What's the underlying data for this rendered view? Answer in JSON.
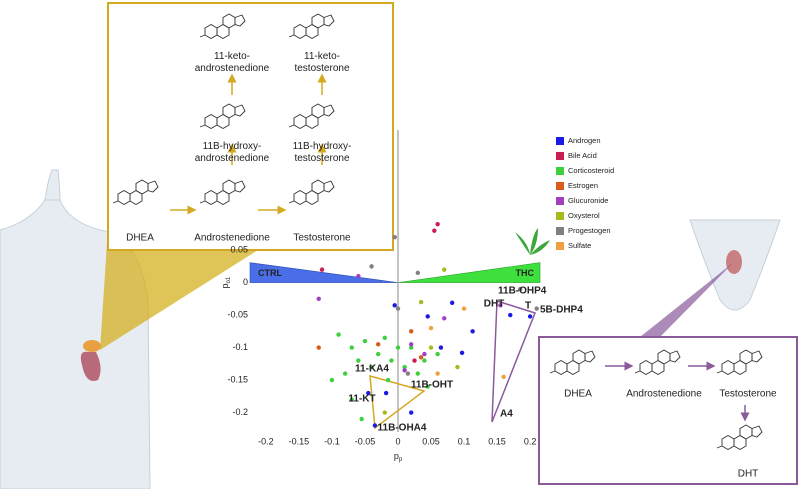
{
  "chart_data": {
    "type": "scatter",
    "xlabel": {
      "main": "p",
      "sub": "p"
    },
    "ylabel": {
      "main": "p",
      "sub": "o1"
    },
    "xlim": [
      -0.215,
      0.215
    ],
    "ylim": [
      -0.23,
      0.235
    ],
    "xticks": [
      -0.2,
      -0.15,
      -0.1,
      -0.05,
      0,
      0.05,
      0.1,
      0.15,
      0.2
    ],
    "yticks": [
      0.05,
      0,
      -0.05,
      -0.1,
      -0.15,
      -0.2
    ],
    "grid": false,
    "legend": "upper right",
    "series": [
      {
        "name": "Androgen",
        "color": "#1a1ae6",
        "x": [
          0.045,
          0.082,
          0.097,
          0.113,
          -0.005,
          -0.045,
          -0.018,
          -0.035,
          0.2,
          0.17,
          0.065,
          0.02
        ],
        "y": [
          -0.052,
          -0.031,
          -0.108,
          -0.075,
          -0.035,
          -0.17,
          -0.17,
          -0.22,
          -0.052,
          -0.05,
          -0.1,
          -0.2
        ]
      },
      {
        "name": "Bile Acid",
        "color": "#c81e50",
        "x": [
          0.055,
          0.06,
          -0.115,
          0.025
        ],
        "y": [
          0.08,
          0.09,
          0.02,
          -0.12
        ]
      },
      {
        "name": "Corticosteroid",
        "color": "#3ecf3e",
        "x": [
          -0.09,
          -0.07,
          -0.06,
          -0.05,
          -0.04,
          -0.03,
          -0.02,
          -0.01,
          0.01,
          0.02,
          0.03,
          0.04,
          -0.08,
          -0.07,
          -0.055,
          -0.1,
          0.045,
          0.06,
          -0.015,
          0.0
        ],
        "y": [
          -0.08,
          -0.1,
          -0.12,
          -0.09,
          -0.13,
          -0.11,
          -0.085,
          -0.12,
          -0.13,
          -0.1,
          -0.14,
          -0.12,
          -0.14,
          -0.18,
          -0.21,
          -0.15,
          -0.16,
          -0.11,
          -0.15,
          -0.1
        ]
      },
      {
        "name": "Estrogen",
        "color": "#d95a1a",
        "x": [
          -0.12,
          0.02,
          -0.03,
          0.035
        ],
        "y": [
          -0.1,
          -0.075,
          -0.095,
          -0.115
        ]
      },
      {
        "name": "Glucuronide",
        "color": "#a040c0",
        "x": [
          -0.12,
          0.07,
          0.04,
          0.02,
          0.01,
          0.155,
          -0.06
        ],
        "y": [
          -0.025,
          -0.055,
          -0.11,
          -0.095,
          -0.135,
          -0.035,
          0.01
        ]
      },
      {
        "name": "Oxysterol",
        "color": "#a8b81e",
        "x": [
          0.035,
          0.05,
          0.07,
          -0.02,
          0.09
        ],
        "y": [
          -0.03,
          -0.1,
          0.02,
          -0.2,
          -0.13
        ]
      },
      {
        "name": "Progestogen",
        "color": "#808080",
        "x": [
          0.185,
          0.21,
          -0.04,
          -0.005,
          0.03,
          0.0,
          0.015
        ],
        "y": [
          -0.01,
          -0.04,
          0.025,
          0.07,
          0.015,
          -0.04,
          -0.14
        ]
      },
      {
        "name": "Sulfate",
        "color": "#f0a040",
        "x": [
          0.1,
          0.16,
          0.05,
          0.06
        ],
        "y": [
          -0.04,
          -0.145,
          -0.07,
          -0.14
        ]
      }
    ],
    "annotations": [
      {
        "text": "DHT",
        "color": "#1a1ae6"
      },
      {
        "text": "T",
        "color": "#1a1ae6"
      },
      {
        "text": "11B-OHP4",
        "color": "#808080"
      },
      {
        "text": "5B-DHP4",
        "color": "#808080"
      },
      {
        "text": "11-KA4",
        "color": "#1a1ae6"
      },
      {
        "text": "11B-OHT",
        "color": "#1a1ae6"
      },
      {
        "text": "11-KT",
        "color": "#1a1ae6"
      },
      {
        "text": "11B-OHA4",
        "color": "#1a1ae6"
      },
      {
        "text": "A4",
        "color": "#1a1ae6"
      }
    ],
    "groups": [
      {
        "text": "CTRL",
        "color": "#4a6ee8"
      },
      {
        "text": "THC",
        "color": "#3ee03e"
      }
    ]
  },
  "diagram_left": {
    "keto_a4": [
      "11-keto-",
      "androstenedione"
    ],
    "keto_t": [
      "11-keto-",
      "testosterone"
    ],
    "oh_a4": [
      "11B-hydroxy-",
      "androstenedione"
    ],
    "oh_t": [
      "11B-hydroxy-",
      "testosterone"
    ],
    "dhea": "DHEA",
    "a4": "Androstenedione",
    "t": "Testosterone"
  },
  "diagram_right": {
    "dhea": "DHEA",
    "a4": "Androstenedione",
    "t": "Testosterone",
    "dht": "DHT"
  }
}
